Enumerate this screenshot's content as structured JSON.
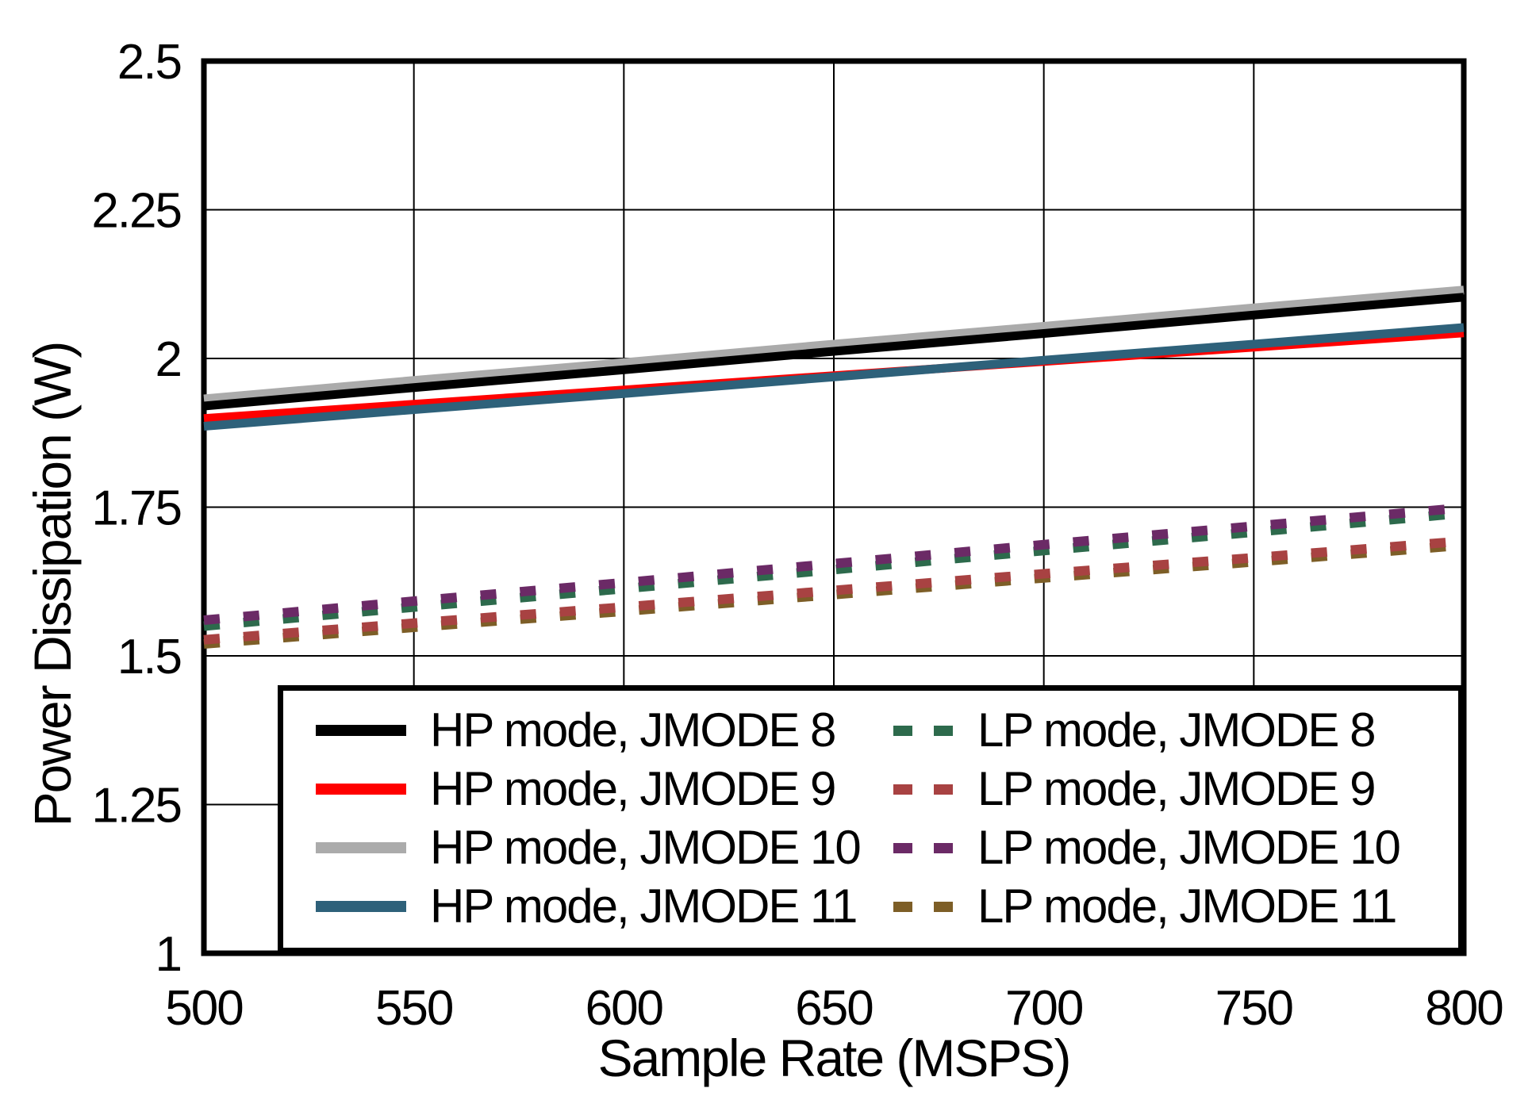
{
  "chart_data": {
    "type": "line",
    "title": "",
    "xlabel": "Sample Rate (MSPS)",
    "ylabel": "Power Dissipation (W)",
    "xlim": [
      500,
      800
    ],
    "ylim": [
      1,
      2.5
    ],
    "x_ticks": [
      500,
      550,
      600,
      650,
      700,
      750,
      800
    ],
    "y_ticks": [
      1,
      1.25,
      1.5,
      1.75,
      2,
      2.25,
      2.5
    ],
    "grid": true,
    "legend_position": "inside-bottom",
    "axis_color": "#000000",
    "grid_color": "#000000",
    "background_color": "#ffffff",
    "x": [
      500,
      550,
      600,
      650,
      700,
      750,
      800
    ],
    "series": [
      {
        "id": "hp8",
        "name": "HP mode, JMODE 8",
        "color": "#000000",
        "style": "solid",
        "values": [
          1.92,
          1.951,
          1.981,
          2.012,
          2.042,
          2.073,
          2.103
        ]
      },
      {
        "id": "hp9",
        "name": "HP mode, JMODE 9",
        "color": "#FF0000",
        "style": "solid",
        "values": [
          1.899,
          1.923,
          1.947,
          1.971,
          1.995,
          2.019,
          2.043
        ]
      },
      {
        "id": "hp10",
        "name": "HP mode, JMODE 10",
        "color": "#ABABAB",
        "style": "solid",
        "values": [
          1.932,
          1.963,
          1.993,
          2.024,
          2.054,
          2.085,
          2.115
        ]
      },
      {
        "id": "hp11",
        "name": "HP mode, JMODE 11",
        "color": "#2E617A",
        "style": "solid",
        "values": [
          1.886,
          1.914,
          1.941,
          1.969,
          1.997,
          2.024,
          2.052
        ]
      },
      {
        "id": "lp8",
        "name": "LP mode, JMODE 8",
        "color": "#2D6A4C",
        "style": "dashed",
        "values": [
          1.55,
          1.582,
          1.613,
          1.645,
          1.677,
          1.708,
          1.74
        ]
      },
      {
        "id": "lp9",
        "name": "LP mode, JMODE 9",
        "color": "#A84242",
        "style": "dashed",
        "values": [
          1.527,
          1.555,
          1.582,
          1.61,
          1.638,
          1.665,
          1.693
        ]
      },
      {
        "id": "lp10",
        "name": "LP mode, JMODE 10",
        "color": "#6B2A66",
        "style": "dashed",
        "values": [
          1.56,
          1.592,
          1.623,
          1.655,
          1.687,
          1.718,
          1.749
        ]
      },
      {
        "id": "lp11",
        "name": "LP mode, JMODE 11",
        "color": "#7D5E27",
        "style": "dashed",
        "values": [
          1.52,
          1.548,
          1.575,
          1.603,
          1.631,
          1.658,
          1.686
        ]
      }
    ],
    "render_order": [
      "hp10",
      "hp8",
      "hp9",
      "hp11",
      "lp8",
      "lp10",
      "lp11",
      "lp9"
    ]
  }
}
